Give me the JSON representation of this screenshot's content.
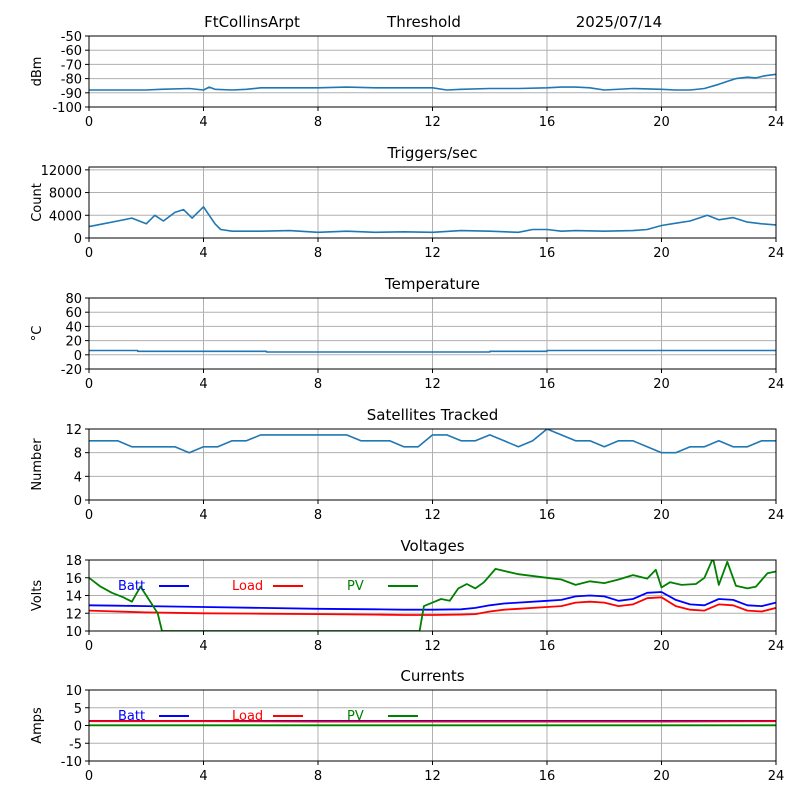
{
  "header": {
    "station": "FtCollinsArpt",
    "mode": "Threshold",
    "date": "2025/07/14"
  },
  "colors": {
    "signal": "#1f77b4",
    "batt": "#0000ff",
    "load": "#ff0000",
    "pv": "#008000",
    "grid": "#b0b0b0"
  },
  "chart_data": [
    {
      "id": "signal",
      "type": "line",
      "title": "",
      "ylabel": "dBm",
      "xlim": [
        0,
        24
      ],
      "xticks": [
        0,
        4,
        8,
        12,
        16,
        20,
        24
      ],
      "ylim": [
        -100,
        -50
      ],
      "yticks": [
        -100,
        -90,
        -80,
        -70,
        -60,
        -50
      ],
      "grid": true,
      "series": [
        {
          "color": "#1f77b4",
          "x": [
            0,
            1,
            2,
            2.5,
            3.5,
            4,
            4.2,
            4.4,
            5,
            5.5,
            6,
            7,
            8,
            9,
            10,
            11,
            12,
            12.5,
            13,
            14,
            15,
            16,
            16.5,
            17,
            17.5,
            18,
            19,
            20,
            20.5,
            21,
            21.5,
            22,
            22.3,
            22.6,
            23,
            23.3,
            23.6,
            24
          ],
          "y": [
            -88,
            -88,
            -88,
            -87.5,
            -87,
            -88,
            -86,
            -87.5,
            -88,
            -87.5,
            -86.5,
            -86.5,
            -86.5,
            -86,
            -86.5,
            -86.5,
            -86.5,
            -88,
            -87.5,
            -87,
            -87,
            -86.5,
            -86,
            -86,
            -86.5,
            -88,
            -87,
            -87.5,
            -88,
            -88,
            -87,
            -84,
            -82,
            -80,
            -79,
            -79.5,
            -78,
            -77
          ]
        }
      ]
    },
    {
      "id": "triggers",
      "type": "line",
      "title": "Triggers/sec",
      "ylabel": "Count",
      "xlim": [
        0,
        24
      ],
      "xticks": [
        0,
        4,
        8,
        12,
        16,
        20,
        24
      ],
      "ylim": [
        0,
        12500
      ],
      "yticks": [
        0,
        4000,
        8000,
        12000
      ],
      "grid": true,
      "series": [
        {
          "color": "#1f77b4",
          "x": [
            0,
            0.5,
            1,
            1.5,
            2,
            2.3,
            2.6,
            3,
            3.3,
            3.6,
            4,
            4.2,
            4.4,
            4.6,
            5,
            6,
            7,
            8,
            9,
            10,
            11,
            12,
            13,
            14,
            15,
            15.5,
            16,
            16.5,
            17,
            18,
            19,
            19.5,
            20,
            20.5,
            21,
            21.3,
            21.6,
            22,
            22.5,
            23,
            23.5,
            24
          ],
          "y": [
            2000,
            2500,
            3000,
            3500,
            2500,
            4000,
            3000,
            4500,
            5000,
            3500,
            5500,
            4000,
            2500,
            1500,
            1200,
            1200,
            1300,
            1000,
            1200,
            1000,
            1100,
            1000,
            1300,
            1200,
            1000,
            1500,
            1500,
            1200,
            1300,
            1200,
            1300,
            1500,
            2200,
            2600,
            3000,
            3500,
            4000,
            3200,
            3600,
            2800,
            2500,
            2300
          ]
        }
      ]
    },
    {
      "id": "temperature",
      "type": "line",
      "title": "Temperature",
      "ylabel": "°C",
      "xlim": [
        0,
        24
      ],
      "xticks": [
        0,
        4,
        8,
        12,
        16,
        20,
        24
      ],
      "ylim": [
        -20,
        80
      ],
      "yticks": [
        -20,
        0,
        20,
        40,
        60,
        80
      ],
      "grid": true,
      "series": [
        {
          "color": "#1f77b4",
          "x": [
            0,
            1.7,
            1.7,
            6.2,
            6.2,
            14,
            14,
            16,
            16,
            24
          ],
          "y": [
            6,
            6,
            5,
            5,
            4,
            4,
            5,
            5,
            6,
            6
          ]
        }
      ]
    },
    {
      "id": "satellites",
      "type": "line",
      "title": "Satellites Tracked",
      "ylabel": "Number",
      "xlim": [
        0,
        24
      ],
      "xticks": [
        0,
        4,
        8,
        12,
        16,
        20,
        24
      ],
      "ylim": [
        0,
        12
      ],
      "yticks": [
        0,
        4,
        8,
        12
      ],
      "grid": true,
      "series": [
        {
          "color": "#1f77b4",
          "x": [
            0,
            0.5,
            1,
            1.5,
            2,
            2.5,
            3,
            3.5,
            4,
            4.5,
            5,
            5.5,
            6,
            6.5,
            7,
            7.5,
            8,
            8.5,
            9,
            9.5,
            10,
            10.5,
            11,
            11.5,
            12,
            12.5,
            13,
            13.5,
            14,
            14.5,
            15,
            15.5,
            16,
            16.5,
            17,
            17.5,
            18,
            18.5,
            19,
            19.5,
            20,
            20.5,
            21,
            21.5,
            22,
            22.5,
            23,
            23.5,
            24
          ],
          "y": [
            10,
            10,
            10,
            9,
            9,
            9,
            9,
            8,
            9,
            9,
            10,
            10,
            11,
            11,
            11,
            11,
            11,
            11,
            11,
            10,
            10,
            10,
            9,
            9,
            11,
            11,
            10,
            10,
            11,
            10,
            9,
            10,
            12,
            11,
            10,
            10,
            9,
            10,
            10,
            9,
            8,
            8,
            9,
            9,
            10,
            9,
            9,
            10,
            10
          ]
        }
      ]
    },
    {
      "id": "voltages",
      "type": "line",
      "title": "Voltages",
      "ylabel": "Volts",
      "xlim": [
        0,
        24
      ],
      "xticks": [
        0,
        4,
        8,
        12,
        16,
        20,
        24
      ],
      "ylim": [
        10,
        18
      ],
      "yticks": [
        10,
        12,
        14,
        16,
        18
      ],
      "grid": true,
      "legend": [
        "Batt",
        "Load",
        "PV"
      ],
      "series": [
        {
          "name": "Batt",
          "color": "#0000ff",
          "x": [
            0,
            1,
            2,
            4,
            6,
            8,
            10,
            11,
            12,
            13,
            13.5,
            14,
            14.5,
            15,
            16,
            16.5,
            17,
            17.5,
            18,
            18.5,
            19,
            19.5,
            20,
            20.5,
            21,
            21.5,
            22,
            22.5,
            23,
            23.5,
            24
          ],
          "y": [
            12.9,
            12.85,
            12.8,
            12.7,
            12.6,
            12.5,
            12.45,
            12.4,
            12.4,
            12.45,
            12.6,
            12.9,
            13.1,
            13.2,
            13.4,
            13.5,
            13.9,
            14.0,
            13.9,
            13.4,
            13.6,
            14.3,
            14.4,
            13.5,
            13.0,
            12.9,
            13.6,
            13.5,
            12.9,
            12.8,
            13.2
          ]
        },
        {
          "name": "Load",
          "color": "#ff0000",
          "x": [
            0,
            1,
            2,
            4,
            6,
            8,
            10,
            11,
            12,
            13,
            13.5,
            14,
            14.5,
            15,
            16,
            16.5,
            17,
            17.5,
            18,
            18.5,
            19,
            19.5,
            20,
            20.5,
            21,
            21.5,
            22,
            22.5,
            23,
            23.5,
            24
          ],
          "y": [
            12.3,
            12.2,
            12.1,
            12.0,
            11.95,
            11.9,
            11.85,
            11.8,
            11.8,
            11.85,
            11.9,
            12.2,
            12.4,
            12.5,
            12.7,
            12.8,
            13.2,
            13.3,
            13.2,
            12.8,
            13.0,
            13.7,
            13.8,
            12.8,
            12.4,
            12.3,
            13.0,
            12.9,
            12.3,
            12.2,
            12.6
          ]
        },
        {
          "name": "PV",
          "color": "#008000",
          "x": [
            0,
            0.4,
            0.8,
            1.2,
            1.5,
            1.8,
            2.2,
            2.4,
            2.55,
            11.55,
            11.7,
            12,
            12.3,
            12.6,
            12.9,
            13.2,
            13.5,
            13.8,
            14.2,
            15,
            16,
            16.5,
            17,
            17.5,
            18,
            18.5,
            19,
            19.5,
            19.8,
            20,
            20.3,
            20.7,
            21.2,
            21.5,
            21.8,
            22,
            22.3,
            22.6,
            23,
            23.3,
            23.7,
            24
          ],
          "y": [
            16.0,
            15.0,
            14.3,
            13.8,
            13.3,
            15.0,
            13.0,
            12.0,
            10.0,
            10.0,
            12.8,
            13.2,
            13.6,
            13.4,
            14.8,
            15.3,
            14.8,
            15.5,
            17.0,
            16.4,
            16.0,
            15.8,
            15.2,
            15.6,
            15.4,
            15.8,
            16.3,
            15.9,
            16.9,
            14.9,
            15.5,
            15.2,
            15.3,
            16.0,
            18.2,
            15.2,
            17.8,
            15.1,
            14.8,
            15.0,
            16.5,
            16.7
          ]
        }
      ]
    },
    {
      "id": "currents",
      "type": "line",
      "title": "Currents",
      "ylabel": "Amps",
      "xlim": [
        0,
        24
      ],
      "xticks": [
        0,
        4,
        8,
        12,
        16,
        20,
        24
      ],
      "ylim": [
        -10,
        10
      ],
      "yticks": [
        -10,
        -5,
        0,
        5,
        10
      ],
      "grid": true,
      "legend": [
        "Batt",
        "Load",
        "PV"
      ],
      "series": [
        {
          "name": "Batt",
          "color": "#0000ff",
          "x": [
            0,
            4,
            8,
            12,
            16,
            20,
            24
          ],
          "y": [
            1.3,
            1.3,
            1.3,
            1.3,
            1.3,
            1.3,
            1.3
          ]
        },
        {
          "name": "Load",
          "color": "#ff0000",
          "x": [
            0,
            4,
            8,
            12,
            16,
            20,
            24
          ],
          "y": [
            1.2,
            1.2,
            1.1,
            1.1,
            1.1,
            1.1,
            1.2
          ]
        },
        {
          "name": "PV",
          "color": "#008000",
          "x": [
            0,
            4,
            8,
            12,
            16,
            20,
            24
          ],
          "y": [
            0.05,
            0.05,
            0.05,
            0.05,
            0.05,
            0.05,
            0.05
          ]
        }
      ]
    }
  ]
}
